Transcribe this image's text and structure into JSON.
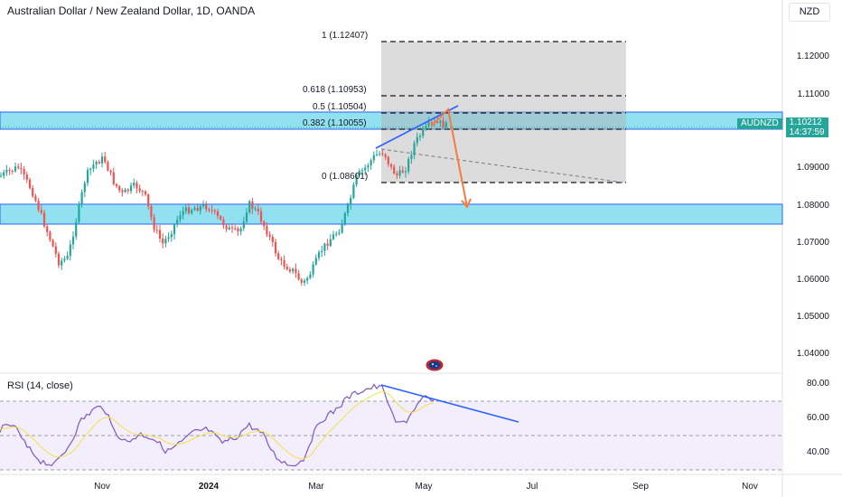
{
  "header": {
    "title": "Australian Dollar / New Zealand Dollar, 1D, OANDA",
    "currency_button": "NZD"
  },
  "price_axis": {
    "ticks": [
      "1.12000",
      "1.11000",
      "1.09000",
      "1.08000",
      "1.07000",
      "1.06000",
      "1.05000",
      "1.04000"
    ]
  },
  "current_price": {
    "symbol": "AUDNZD",
    "price": "1.10212",
    "countdown": "14:37:59"
  },
  "fibonacci": {
    "levels": [
      {
        "label": "1 (1.12407)",
        "value": 1.12407
      },
      {
        "label": "0.618 (1.10953)",
        "value": 1.10953
      },
      {
        "label": "0.5 (1.10504)",
        "value": 1.10504
      },
      {
        "label": "0.382 (1.10055)",
        "value": 1.10055
      },
      {
        "label": "0 (1.08601)",
        "value": 1.08601
      }
    ]
  },
  "time_axis": {
    "ticks": [
      {
        "label": "Nov",
        "bold": false
      },
      {
        "label": "2024",
        "bold": true
      },
      {
        "label": "Mar",
        "bold": false
      },
      {
        "label": "May",
        "bold": false
      },
      {
        "label": "Jul",
        "bold": false
      },
      {
        "label": "Sep",
        "bold": false
      },
      {
        "label": "Nov",
        "bold": false
      }
    ]
  },
  "rsi": {
    "label": "RSI (14, close)",
    "ticks": [
      "80.00",
      "60.00",
      "40.00"
    ]
  },
  "colors": {
    "up": "#26a69a",
    "down": "#ef5350",
    "zone": "#7fdcee",
    "zone_border": "#2962ff",
    "trend_line": "#2962ff",
    "arrow": "#f57c3c",
    "rsi_line": "#7e57c2",
    "rsi_ma": "#f5e04a"
  }
}
